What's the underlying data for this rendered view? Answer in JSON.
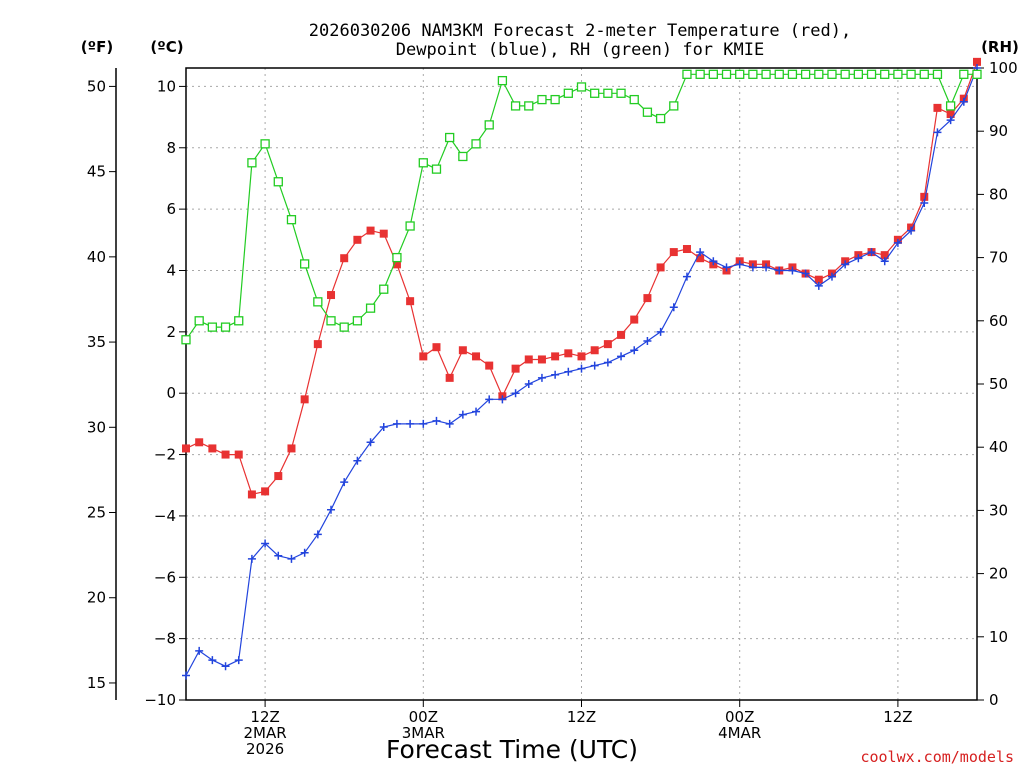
{
  "chart_data": {
    "type": "line",
    "title": [
      "2026030206 NAM3KM Forecast 2-meter Temperature (red),",
      "Dewpoint (blue), RH (green) for KMIE"
    ],
    "unit_labels": {
      "fahrenheit": "(ºF)",
      "celsius": "(ºC)",
      "rh": "(RH)"
    },
    "xlabel": "Forecast Time (UTC)",
    "credit": "coolwx.com/models",
    "x_range_hours": [
      0,
      60
    ],
    "x_ticks": [
      {
        "hour": 6,
        "lines": [
          "12Z",
          "2MAR",
          "2026"
        ]
      },
      {
        "hour": 18,
        "lines": [
          "00Z",
          "3MAR"
        ]
      },
      {
        "hour": 30,
        "lines": [
          "12Z"
        ]
      },
      {
        "hour": 42,
        "lines": [
          "00Z",
          "4MAR"
        ]
      },
      {
        "hour": 54,
        "lines": [
          "12Z"
        ]
      }
    ],
    "y_celsius": {
      "range": [
        -10,
        10.6
      ],
      "ticks": [
        -10,
        -8,
        -6,
        -4,
        -2,
        0,
        2,
        4,
        6,
        8,
        10
      ]
    },
    "y_fahrenheit": {
      "ticks": [
        15,
        20,
        25,
        30,
        35,
        40,
        45,
        50
      ]
    },
    "y_rh": {
      "range": [
        0,
        100
      ],
      "ticks": [
        0,
        10,
        20,
        30,
        40,
        50,
        60,
        70,
        80,
        90,
        100
      ]
    },
    "series": [
      {
        "name": "Temperature",
        "units": "C",
        "color": "#e83232",
        "marker": "filled-square",
        "x": [
          0,
          1,
          2,
          3,
          4,
          5,
          6,
          7,
          8,
          9,
          10,
          11,
          12,
          13,
          14,
          15,
          16,
          17,
          18,
          19,
          20,
          21,
          22,
          23,
          24,
          25,
          26,
          27,
          28,
          29,
          30,
          31,
          32,
          33,
          34,
          35,
          36,
          37,
          38,
          39,
          40,
          41,
          42,
          43,
          44,
          45,
          46,
          47,
          48,
          49,
          50,
          51,
          52,
          53,
          54,
          55,
          56,
          57,
          58,
          59,
          60
        ],
        "values": [
          -1.8,
          -1.6,
          -1.8,
          -2.0,
          -2.0,
          -3.3,
          -3.2,
          -2.7,
          -1.8,
          -0.2,
          1.6,
          3.2,
          4.4,
          5.0,
          5.3,
          5.2,
          4.2,
          3.0,
          1.2,
          1.5,
          0.5,
          1.4,
          1.2,
          0.9,
          -0.1,
          0.8,
          1.1,
          1.1,
          1.2,
          1.3,
          1.2,
          1.4,
          1.6,
          1.9,
          2.4,
          3.1,
          4.1,
          4.6,
          4.7,
          4.4,
          4.2,
          4.0,
          4.3,
          4.2,
          4.2,
          4.0,
          4.1,
          3.9,
          3.7,
          3.9,
          4.3,
          4.5,
          4.6,
          4.5,
          5.0,
          5.4,
          6.4,
          9.3,
          9.1,
          9.6,
          10.8
        ]
      },
      {
        "name": "Dewpoint",
        "units": "C",
        "color": "#2244dd",
        "marker": "plus",
        "x": [
          0,
          1,
          2,
          3,
          4,
          5,
          6,
          7,
          8,
          9,
          10,
          11,
          12,
          13,
          14,
          15,
          16,
          17,
          18,
          19,
          20,
          21,
          22,
          23,
          24,
          25,
          26,
          27,
          28,
          29,
          30,
          31,
          32,
          33,
          34,
          35,
          36,
          37,
          38,
          39,
          40,
          41,
          42,
          43,
          44,
          45,
          46,
          47,
          48,
          49,
          50,
          51,
          52,
          53,
          54,
          55,
          56,
          57,
          58,
          59,
          60
        ],
        "values": [
          -9.2,
          -8.4,
          -8.7,
          -8.9,
          -8.7,
          -5.4,
          -4.9,
          -5.3,
          -5.4,
          -5.2,
          -4.6,
          -3.8,
          -2.9,
          -2.2,
          -1.6,
          -1.1,
          -1.0,
          -1.0,
          -1.0,
          -0.9,
          -1.0,
          -0.7,
          -0.6,
          -0.2,
          -0.2,
          0.0,
          0.3,
          0.5,
          0.6,
          0.7,
          0.8,
          0.9,
          1.0,
          1.2,
          1.4,
          1.7,
          2.0,
          2.8,
          3.8,
          4.6,
          4.3,
          4.1,
          4.2,
          4.1,
          4.1,
          4.0,
          4.0,
          3.9,
          3.5,
          3.8,
          4.2,
          4.4,
          4.6,
          4.3,
          4.9,
          5.3,
          6.2,
          8.5,
          8.9,
          9.5,
          10.6
        ]
      },
      {
        "name": "RH",
        "units": "%",
        "color": "#22cc22",
        "marker": "open-square",
        "x": [
          0,
          1,
          2,
          3,
          4,
          5,
          6,
          7,
          8,
          9,
          10,
          11,
          12,
          13,
          14,
          15,
          16,
          17,
          18,
          19,
          20,
          21,
          22,
          23,
          24,
          25,
          26,
          27,
          28,
          29,
          30,
          31,
          32,
          33,
          34,
          35,
          36,
          37,
          38,
          39,
          40,
          41,
          42,
          43,
          44,
          45,
          46,
          47,
          48,
          49,
          50,
          51,
          52,
          53,
          54,
          55,
          56,
          57,
          58,
          59,
          60
        ],
        "values": [
          57,
          60,
          59,
          59,
          60,
          85,
          88,
          82,
          76,
          69,
          63,
          60,
          59,
          60,
          62,
          65,
          70,
          75,
          85,
          84,
          89,
          86,
          88,
          91,
          98,
          94,
          94,
          95,
          95,
          96,
          97,
          96,
          96,
          96,
          95,
          93,
          92,
          94,
          99,
          99,
          99,
          99,
          99,
          99,
          99,
          99,
          99,
          99,
          99,
          99,
          99,
          99,
          99,
          99,
          99,
          99,
          99,
          99,
          94,
          99,
          99
        ]
      }
    ]
  }
}
